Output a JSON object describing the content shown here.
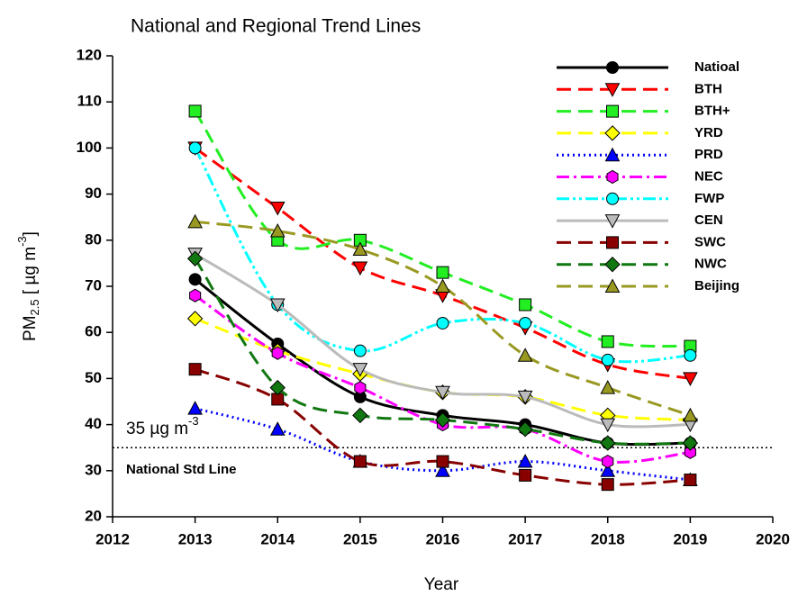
{
  "chart_data": {
    "type": "line",
    "title": "National and Regional Trend Lines",
    "xlabel": "Year",
    "ylabel": {
      "main": "PM",
      "sub": "2.5",
      "rest": " [ µg m",
      "sup": "-3",
      "end": "]"
    },
    "x": [
      2013,
      2014,
      2015,
      2016,
      2017,
      2018,
      2019
    ],
    "xlim": [
      2012,
      2020
    ],
    "xticks": [
      2012,
      2013,
      2014,
      2015,
      2016,
      2017,
      2018,
      2019,
      2020
    ],
    "ylim": [
      20,
      120
    ],
    "yticks": [
      20,
      30,
      40,
      50,
      60,
      70,
      80,
      90,
      100,
      110,
      120
    ],
    "legend": "upper-right",
    "reference_line": {
      "value": 35,
      "label": "35 µg m",
      "sup": "-3",
      "note": "National Std Line"
    },
    "series": [
      {
        "name": "Natioal",
        "color": "#000000",
        "linestyle": "solid",
        "marker": "circle",
        "values": [
          71.5,
          57.5,
          46,
          42,
          40,
          36,
          36
        ]
      },
      {
        "name": "BTH",
        "color": "#ff0000",
        "linestyle": "dashed",
        "marker": "triangle-down",
        "values": [
          100,
          87,
          74,
          68,
          61,
          53,
          50
        ]
      },
      {
        "name": "BTH+",
        "color": "#22ee22",
        "linestyle": "dashed",
        "marker": "square",
        "values": [
          108,
          80,
          80,
          73,
          66,
          58,
          57
        ]
      },
      {
        "name": "YRD",
        "color": "#ffff00",
        "linestyle": "dashed",
        "marker": "diamond",
        "values": [
          63,
          56,
          51,
          47,
          46,
          42,
          41
        ]
      },
      {
        "name": "PRD",
        "color": "#0000ff",
        "linestyle": "dotted",
        "marker": "triangle-up",
        "values": [
          43.5,
          39,
          32,
          30,
          32,
          30,
          28
        ]
      },
      {
        "name": "NEC",
        "color": "#ff00ff",
        "linestyle": "dashdot",
        "marker": "hexagon",
        "values": [
          68,
          55.5,
          48,
          40,
          39,
          32,
          34
        ]
      },
      {
        "name": "FWP",
        "color": "#00ffff",
        "linestyle": "dashdotdot",
        "marker": "circle",
        "values": [
          100,
          66,
          56,
          62,
          62,
          54,
          55
        ]
      },
      {
        "name": "CEN",
        "color": "#bbbbbb",
        "linestyle": "solid",
        "marker": "triangle-down",
        "values": [
          77,
          66,
          52,
          47,
          46,
          40,
          40
        ]
      },
      {
        "name": "SWC",
        "color": "#880000",
        "linestyle": "dashed",
        "marker": "square",
        "values": [
          52,
          45.5,
          32,
          32,
          29,
          27,
          28
        ]
      },
      {
        "name": "NWC",
        "color": "#117711",
        "linestyle": "dashed",
        "marker": "diamond",
        "values": [
          76,
          48,
          42,
          41,
          39,
          36,
          36
        ]
      },
      {
        "name": "Beijing",
        "color": "#999922",
        "linestyle": "dashed",
        "marker": "triangle-up",
        "values": [
          84,
          82,
          78,
          70,
          55,
          48,
          42
        ]
      }
    ]
  }
}
